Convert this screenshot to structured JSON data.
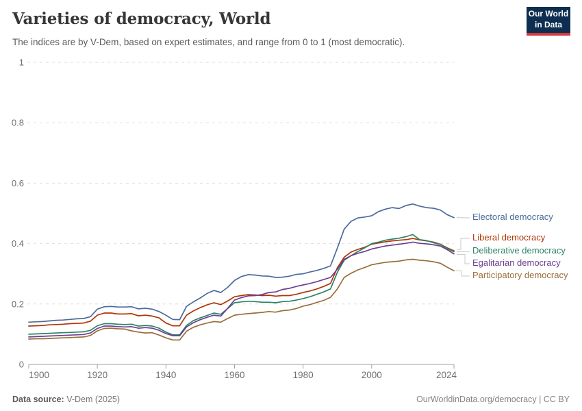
{
  "header": {
    "title": "Varieties of democracy, World",
    "subtitle": "The indices are by V-Dem, based on expert estimates, and range from 0 to 1 (most democratic).",
    "logo": {
      "line1": "Our World",
      "line2": "in Data",
      "bg_color": "#0d2e51",
      "accent_color": "#d13b3b"
    }
  },
  "footer": {
    "source_label": "Data source:",
    "source_value": "V-Dem (2025)",
    "attribution": "OurWorldinData.org/democracy | CC BY"
  },
  "chart_data": {
    "type": "line",
    "title": "Varieties of democracy, World",
    "xlabel": "",
    "ylabel": "",
    "xlim": [
      1900,
      2024
    ],
    "ylim": [
      0,
      1
    ],
    "xticks": [
      1900,
      1920,
      1940,
      1960,
      1980,
      2000,
      2024
    ],
    "yticks": [
      0,
      0.2,
      0.4,
      0.6,
      0.8,
      1
    ],
    "grid": "dashed horizontal",
    "legend_position": "right of line ends, connected with gray elbow lines",
    "x": [
      1900,
      1902,
      1904,
      1906,
      1908,
      1910,
      1912,
      1914,
      1916,
      1918,
      1920,
      1922,
      1924,
      1926,
      1928,
      1930,
      1932,
      1934,
      1936,
      1938,
      1940,
      1942,
      1944,
      1946,
      1948,
      1950,
      1952,
      1954,
      1956,
      1958,
      1960,
      1962,
      1964,
      1966,
      1968,
      1970,
      1972,
      1974,
      1976,
      1978,
      1980,
      1982,
      1984,
      1986,
      1988,
      1990,
      1992,
      1994,
      1996,
      1998,
      2000,
      2002,
      2004,
      2006,
      2008,
      2010,
      2012,
      2014,
      2016,
      2018,
      2020,
      2022,
      2024
    ],
    "series": [
      {
        "name": "Electoral democracy",
        "color": "#4c6a9c",
        "values": [
          0.14,
          0.141,
          0.142,
          0.144,
          0.146,
          0.147,
          0.149,
          0.151,
          0.152,
          0.158,
          0.183,
          0.191,
          0.192,
          0.19,
          0.19,
          0.191,
          0.184,
          0.186,
          0.183,
          0.175,
          0.163,
          0.149,
          0.148,
          0.192,
          0.207,
          0.22,
          0.235,
          0.245,
          0.238,
          0.255,
          0.278,
          0.291,
          0.297,
          0.296,
          0.293,
          0.292,
          0.288,
          0.289,
          0.292,
          0.298,
          0.3,
          0.306,
          0.311,
          0.318,
          0.326,
          0.385,
          0.448,
          0.474,
          0.485,
          0.488,
          0.492,
          0.506,
          0.514,
          0.519,
          0.516,
          0.526,
          0.531,
          0.524,
          0.519,
          0.517,
          0.511,
          0.496,
          0.486
        ]
      },
      {
        "name": "Liberal democracy",
        "color": "#b13507",
        "values": [
          0.127,
          0.128,
          0.129,
          0.131,
          0.132,
          0.133,
          0.135,
          0.136,
          0.137,
          0.143,
          0.163,
          0.17,
          0.17,
          0.167,
          0.167,
          0.168,
          0.161,
          0.163,
          0.16,
          0.154,
          0.137,
          0.128,
          0.128,
          0.163,
          0.177,
          0.188,
          0.197,
          0.204,
          0.198,
          0.21,
          0.224,
          0.228,
          0.231,
          0.23,
          0.228,
          0.229,
          0.226,
          0.228,
          0.228,
          0.232,
          0.238,
          0.243,
          0.25,
          0.258,
          0.268,
          0.32,
          0.355,
          0.372,
          0.381,
          0.388,
          0.398,
          0.402,
          0.406,
          0.409,
          0.411,
          0.413,
          0.417,
          0.412,
          0.409,
          0.405,
          0.398,
          0.386,
          0.376
        ]
      },
      {
        "name": "Deliberative democracy",
        "color": "#2c8465",
        "values": [
          0.1,
          0.101,
          0.102,
          0.103,
          0.104,
          0.105,
          0.106,
          0.107,
          0.108,
          0.113,
          0.128,
          0.135,
          0.135,
          0.133,
          0.132,
          0.133,
          0.127,
          0.129,
          0.127,
          0.12,
          0.107,
          0.098,
          0.098,
          0.129,
          0.145,
          0.154,
          0.162,
          0.17,
          0.166,
          0.185,
          0.204,
          0.207,
          0.209,
          0.208,
          0.206,
          0.206,
          0.204,
          0.208,
          0.209,
          0.213,
          0.218,
          0.224,
          0.232,
          0.24,
          0.25,
          0.305,
          0.345,
          0.36,
          0.374,
          0.386,
          0.4,
          0.405,
          0.411,
          0.415,
          0.418,
          0.423,
          0.43,
          0.413,
          0.41,
          0.403,
          0.397,
          0.384,
          0.373
        ]
      },
      {
        "name": "Egalitarian democracy",
        "color": "#6d3e91",
        "values": [
          0.091,
          0.092,
          0.093,
          0.094,
          0.095,
          0.096,
          0.097,
          0.098,
          0.099,
          0.104,
          0.119,
          0.127,
          0.127,
          0.125,
          0.124,
          0.125,
          0.12,
          0.122,
          0.12,
          0.113,
          0.102,
          0.095,
          0.095,
          0.124,
          0.138,
          0.148,
          0.156,
          0.163,
          0.16,
          0.186,
          0.213,
          0.221,
          0.227,
          0.228,
          0.231,
          0.238,
          0.24,
          0.248,
          0.252,
          0.258,
          0.263,
          0.268,
          0.274,
          0.281,
          0.288,
          0.315,
          0.348,
          0.36,
          0.368,
          0.374,
          0.382,
          0.387,
          0.392,
          0.395,
          0.398,
          0.401,
          0.405,
          0.401,
          0.399,
          0.396,
          0.392,
          0.38,
          0.366
        ]
      },
      {
        "name": "Participatory democracy",
        "color": "#996d39",
        "values": [
          0.084,
          0.085,
          0.085,
          0.086,
          0.087,
          0.088,
          0.089,
          0.09,
          0.091,
          0.096,
          0.111,
          0.119,
          0.12,
          0.118,
          0.117,
          0.111,
          0.107,
          0.104,
          0.105,
          0.097,
          0.088,
          0.081,
          0.081,
          0.11,
          0.123,
          0.131,
          0.137,
          0.142,
          0.14,
          0.152,
          0.163,
          0.166,
          0.168,
          0.17,
          0.172,
          0.175,
          0.173,
          0.178,
          0.18,
          0.185,
          0.193,
          0.198,
          0.205,
          0.212,
          0.222,
          0.25,
          0.288,
          0.302,
          0.313,
          0.321,
          0.33,
          0.334,
          0.338,
          0.34,
          0.342,
          0.346,
          0.348,
          0.345,
          0.343,
          0.34,
          0.335,
          0.322,
          0.31
        ]
      }
    ]
  }
}
